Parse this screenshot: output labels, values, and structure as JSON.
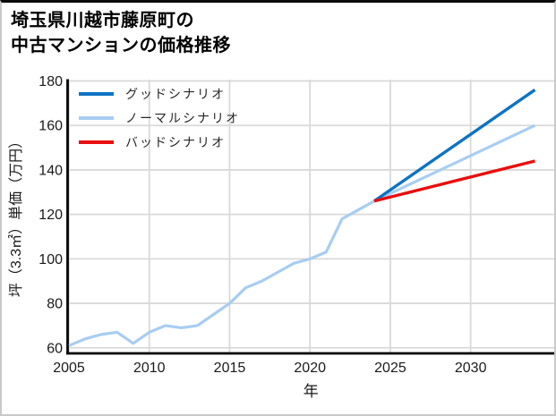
{
  "header": {
    "title_line1": "埼玉県川越市藤原町の",
    "title_line2": "中古マンションの価格推移"
  },
  "chart_data": {
    "type": "line",
    "title": "埼玉県川越市藤原町の中古マンションの価格推移",
    "xlabel": "年",
    "ylabel": "坪（3.3㎡）単価（万円）",
    "xlim": [
      2005,
      2035.2
    ],
    "ylim": [
      57.5,
      180
    ],
    "x_ticks": [
      2005,
      2010,
      2015,
      2020,
      2025,
      2030
    ],
    "y_ticks": [
      60,
      80,
      100,
      120,
      140,
      160,
      180
    ],
    "grid": true,
    "grid_color": "#d9d9d9",
    "axis_color": "#000000",
    "tick_label_color": "#1a1a1a",
    "legend_position": "top-left",
    "series": [
      {
        "key": "good_scenario",
        "name": "グッドシナリオ",
        "color": "#0d73c4",
        "width": 3.4,
        "x": [
          2024,
          2034
        ],
        "y": [
          126,
          176
        ]
      },
      {
        "key": "normal_scenario",
        "name": "ノーマルシナリオ",
        "color": "#a8cdf3",
        "width": 3.2,
        "x": [
          2005,
          2006,
          2007,
          2008,
          2009,
          2010,
          2011,
          2012,
          2013,
          2014,
          2015,
          2016,
          2017,
          2018,
          2019,
          2020,
          2021,
          2022,
          2023,
          2024,
          2034
        ],
        "y": [
          61,
          64,
          66,
          67,
          62,
          67,
          70,
          69,
          70,
          75,
          80,
          87,
          90,
          94,
          98,
          100,
          103,
          118,
          122,
          126,
          160
        ]
      },
      {
        "key": "bad_scenario",
        "name": "バッドシナリオ",
        "color": "#e90e0e",
        "width": 3.4,
        "x": [
          2024,
          2034
        ],
        "y": [
          126,
          144
        ]
      }
    ]
  }
}
